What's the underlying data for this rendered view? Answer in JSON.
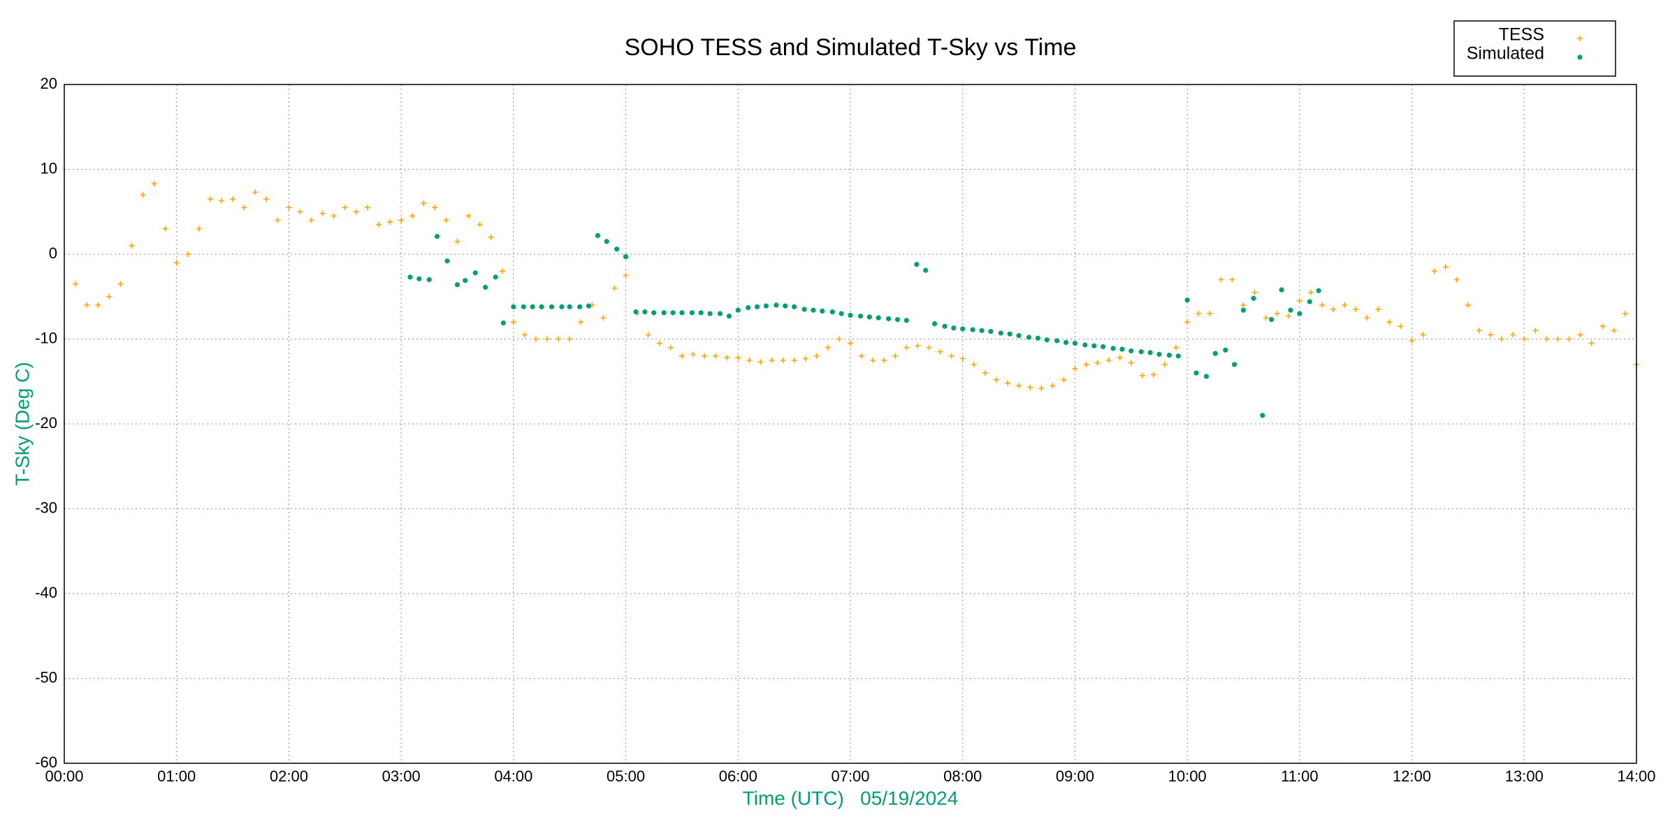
{
  "chart_data": {
    "type": "scatter",
    "title": "SOHO TESS and Simulated T-Sky vs Time",
    "xlabel": "Time (UTC)   05/19/2024",
    "ylabel": "T-Sky (Deg C)",
    "xlim": [
      0,
      14
    ],
    "ylim": [
      -60,
      20
    ],
    "xticks": [
      {
        "value": 0,
        "label": "00:00"
      },
      {
        "value": 1,
        "label": "01:00"
      },
      {
        "value": 2,
        "label": "02:00"
      },
      {
        "value": 3,
        "label": "03:00"
      },
      {
        "value": 4,
        "label": "04:00"
      },
      {
        "value": 5,
        "label": "05:00"
      },
      {
        "value": 6,
        "label": "06:00"
      },
      {
        "value": 7,
        "label": "07:00"
      },
      {
        "value": 8,
        "label": "08:00"
      },
      {
        "value": 9,
        "label": "09:00"
      },
      {
        "value": 10,
        "label": "10:00"
      },
      {
        "value": 11,
        "label": "11:00"
      },
      {
        "value": 12,
        "label": "12:00"
      },
      {
        "value": 13,
        "label": "13:00"
      },
      {
        "value": 14,
        "label": "14:00"
      }
    ],
    "yticks": [
      -60,
      -50,
      -40,
      -30,
      -20,
      -10,
      0,
      10,
      20
    ],
    "grid": true,
    "legend": "upper right",
    "series": [
      {
        "name": "TESS",
        "color": "#ffa500",
        "marker": "plus",
        "x": [
          0.1,
          0.2,
          0.3,
          0.4,
          0.5,
          0.6,
          0.7,
          0.8,
          0.9,
          1.0,
          1.1,
          1.2,
          1.3,
          1.4,
          1.5,
          1.6,
          1.7,
          1.8,
          1.9,
          2.0,
          2.1,
          2.2,
          2.3,
          2.4,
          2.5,
          2.6,
          2.7,
          2.8,
          2.9,
          3.0,
          3.1,
          3.2,
          3.3,
          3.4,
          3.5,
          3.6,
          3.7,
          3.8,
          3.9,
          4.0,
          4.1,
          4.2,
          4.3,
          4.4,
          4.5,
          4.6,
          4.7,
          4.8,
          4.9,
          5.0,
          5.1,
          5.2,
          5.3,
          5.4,
          5.5,
          5.6,
          5.7,
          5.8,
          5.9,
          6.0,
          6.1,
          6.2,
          6.3,
          6.4,
          6.5,
          6.6,
          6.7,
          6.8,
          6.9,
          7.0,
          7.1,
          7.2,
          7.3,
          7.4,
          7.5,
          7.6,
          7.7,
          7.8,
          7.9,
          8.0,
          8.1,
          8.2,
          8.3,
          8.4,
          8.5,
          8.6,
          8.7,
          8.8,
          8.9,
          9.0,
          9.1,
          9.2,
          9.3,
          9.4,
          9.5,
          9.6,
          9.7,
          9.8,
          9.9,
          10.0,
          10.1,
          10.2,
          10.3,
          10.4,
          10.5,
          10.6,
          10.7,
          10.8,
          10.9,
          11.0,
          11.1,
          11.2,
          11.3,
          11.4,
          11.5,
          11.6,
          11.7,
          11.8,
          11.9,
          12.0,
          12.1,
          12.2,
          12.3,
          12.4,
          12.5,
          12.6,
          12.7,
          12.8,
          12.9,
          13.0,
          13.1,
          13.2,
          13.3,
          13.4,
          13.5,
          13.6,
          13.7,
          13.8,
          13.9,
          14.0
        ],
        "values": [
          -3.5,
          -6,
          -6,
          -5,
          -3.5,
          1,
          7,
          8.3,
          3,
          -1,
          0,
          3,
          6.5,
          6.3,
          6.5,
          5.5,
          7.3,
          6.5,
          4,
          5.5,
          5,
          4,
          4.8,
          4.5,
          5.5,
          5,
          5.5,
          3.5,
          3.8,
          4,
          4.5,
          6,
          5.5,
          4,
          1.5,
          4.5,
          3.5,
          2,
          -2,
          -8,
          -9.5,
          -10,
          -10,
          -10,
          -10,
          -8,
          -6,
          -7.5,
          -4,
          -2.5,
          -7,
          -9.5,
          -10.5,
          -11,
          -12,
          -11.8,
          -12,
          -12,
          -12.2,
          -12.2,
          -12.5,
          -12.7,
          -12.5,
          -12.5,
          -12.5,
          -12.3,
          -12,
          -11,
          -10,
          -10.5,
          -12,
          -12.5,
          -12.5,
          -12,
          -11,
          -10.8,
          -11,
          -11.5,
          -12,
          -12.3,
          -13,
          -14,
          -14.8,
          -15.2,
          -15.5,
          -15.7,
          -15.8,
          -15.5,
          -14.8,
          -13.5,
          -13,
          -12.8,
          -12.5,
          -12.2,
          -12.8,
          -14.3,
          -14.2,
          -13,
          -11,
          -8,
          -7,
          -7,
          -3,
          -3,
          -6,
          -4.5,
          -7.5,
          -7,
          -7.3,
          -5.5,
          -4.5,
          -6,
          -6.5,
          -6,
          -6.5,
          -7.5,
          -6.5,
          -8,
          -8.5,
          -10.2,
          -9.5,
          -2,
          -1.5,
          -3,
          -6,
          -9,
          -9.5,
          -10,
          -9.5,
          -10,
          -9,
          -10,
          -10,
          -10,
          -9.5,
          -10.5,
          -8.5,
          -9,
          -7,
          -13
        ]
      },
      {
        "name": "Simulated",
        "color": "#009e73",
        "marker": "dot",
        "x": [
          3.08,
          3.16,
          3.25,
          3.32,
          3.41,
          3.5,
          3.57,
          3.66,
          3.75,
          3.84,
          3.91,
          4.0,
          4.09,
          4.17,
          4.25,
          4.34,
          4.43,
          4.5,
          4.59,
          4.67,
          4.75,
          4.83,
          4.92,
          5.0,
          5.09,
          5.17,
          5.25,
          5.34,
          5.42,
          5.5,
          5.59,
          5.67,
          5.75,
          5.84,
          5.92,
          6.0,
          6.09,
          6.17,
          6.25,
          6.34,
          6.42,
          6.5,
          6.59,
          6.67,
          6.75,
          6.84,
          6.92,
          7.0,
          7.09,
          7.17,
          7.25,
          7.34,
          7.42,
          7.5,
          7.59,
          7.67,
          7.75,
          7.84,
          7.92,
          8.0,
          8.09,
          8.17,
          8.25,
          8.34,
          8.42,
          8.5,
          8.59,
          8.67,
          8.75,
          8.84,
          8.92,
          9.0,
          9.09,
          9.17,
          9.25,
          9.34,
          9.42,
          9.5,
          9.59,
          9.67,
          9.75,
          9.84,
          9.92,
          10.0,
          10.08,
          10.17,
          10.25,
          10.34,
          10.42,
          10.5,
          10.59,
          10.67,
          10.75,
          10.84,
          10.92,
          11.0,
          11.09,
          11.17
        ],
        "values": [
          -2.7,
          -2.9,
          -3.0,
          2.1,
          -0.8,
          -3.6,
          -3.1,
          -2.2,
          -3.9,
          -2.7,
          -8.1,
          -6.2,
          -6.2,
          -6.2,
          -6.2,
          -6.2,
          -6.2,
          -6.2,
          -6.2,
          -6.1,
          2.2,
          1.5,
          0.6,
          -0.3,
          -6.8,
          -6.8,
          -6.9,
          -6.9,
          -6.9,
          -6.9,
          -6.9,
          -6.9,
          -7.0,
          -7.0,
          -7.3,
          -6.6,
          -6.3,
          -6.2,
          -6.1,
          -6.0,
          -6.1,
          -6.2,
          -6.5,
          -6.6,
          -6.7,
          -6.8,
          -7.0,
          -7.2,
          -7.3,
          -7.4,
          -7.5,
          -7.6,
          -7.7,
          -7.8,
          -1.2,
          -1.9,
          -8.2,
          -8.5,
          -8.7,
          -8.8,
          -8.9,
          -9.0,
          -9.1,
          -9.3,
          -9.4,
          -9.6,
          -9.8,
          -9.9,
          -10.1,
          -10.2,
          -10.4,
          -10.5,
          -10.7,
          -10.8,
          -10.9,
          -11.1,
          -11.2,
          -11.4,
          -11.5,
          -11.6,
          -11.8,
          -11.9,
          -12.0,
          -5.4,
          -14.0,
          -14.4,
          -11.7,
          -11.3,
          -13.0,
          -6.6,
          -5.2,
          -19.0,
          -7.7,
          -4.2,
          -6.6,
          -7.0,
          -5.6,
          -4.3
        ]
      }
    ]
  }
}
